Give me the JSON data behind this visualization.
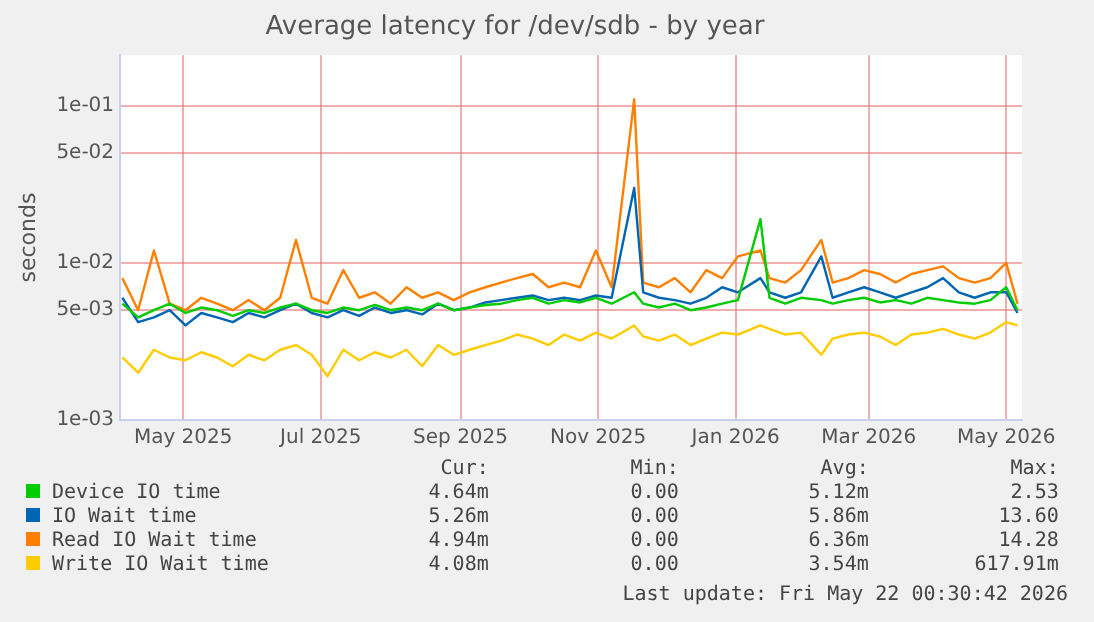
{
  "chart_data": {
    "type": "line",
    "title": "Average latency for /dev/sdb - by year",
    "ylabel": "seconds",
    "x": [
      "2025-04-19",
      "2025-04-26",
      "2025-05-03",
      "2025-05-10",
      "2025-05-17",
      "2025-05-24",
      "2025-05-31",
      "2025-06-07",
      "2025-06-14",
      "2025-06-21",
      "2025-06-28",
      "2025-07-05",
      "2025-07-12",
      "2025-07-19",
      "2025-07-26",
      "2025-08-02",
      "2025-08-09",
      "2025-08-16",
      "2025-08-23",
      "2025-08-30",
      "2025-09-06",
      "2025-09-13",
      "2025-09-20",
      "2025-09-27",
      "2025-10-04",
      "2025-10-11",
      "2025-10-18",
      "2025-10-25",
      "2025-11-01",
      "2025-11-08",
      "2025-11-15",
      "2025-11-22",
      "2025-12-02",
      "2025-12-06",
      "2025-12-13",
      "2025-12-20",
      "2025-12-27",
      "2026-01-03",
      "2026-01-10",
      "2026-01-17",
      "2026-01-27",
      "2026-01-31",
      "2026-02-07",
      "2026-02-14",
      "2026-02-23",
      "2026-02-28",
      "2026-03-07",
      "2026-03-14",
      "2026-03-21",
      "2026-03-28",
      "2026-04-04",
      "2026-04-11",
      "2026-04-18",
      "2026-04-25",
      "2026-05-02",
      "2026-05-09",
      "2026-05-16",
      "2026-05-21"
    ],
    "series": [
      {
        "name": "Device IO time",
        "color": "#00cc00",
        "values": [
          0.0055,
          0.0045,
          0.005,
          0.0055,
          0.0048,
          0.0052,
          0.005,
          0.0046,
          0.005,
          0.0048,
          0.0052,
          0.0055,
          0.005,
          0.0048,
          0.0052,
          0.005,
          0.0054,
          0.005,
          0.0052,
          0.005,
          0.0055,
          0.005,
          0.0052,
          0.0054,
          0.0055,
          0.0058,
          0.006,
          0.0055,
          0.0058,
          0.0056,
          0.006,
          0.0055,
          0.0065,
          0.0055,
          0.0052,
          0.0055,
          0.005,
          0.0052,
          0.0055,
          0.0058,
          0.019,
          0.006,
          0.0055,
          0.006,
          0.0058,
          0.0055,
          0.0058,
          0.006,
          0.0056,
          0.0058,
          0.0055,
          0.006,
          0.0058,
          0.0056,
          0.0055,
          0.0058,
          0.007,
          0.005
        ]
      },
      {
        "name": "IO Wait time",
        "color": "#0066b3",
        "values": [
          0.006,
          0.0042,
          0.0045,
          0.005,
          0.004,
          0.0048,
          0.0045,
          0.0042,
          0.0048,
          0.0045,
          0.005,
          0.0055,
          0.0048,
          0.0045,
          0.005,
          0.0046,
          0.0052,
          0.0048,
          0.005,
          0.0047,
          0.0055,
          0.005,
          0.0052,
          0.0056,
          0.0058,
          0.006,
          0.0062,
          0.0058,
          0.006,
          0.0058,
          0.0062,
          0.006,
          0.03,
          0.0065,
          0.006,
          0.0058,
          0.0055,
          0.006,
          0.007,
          0.0065,
          0.008,
          0.0065,
          0.006,
          0.0065,
          0.011,
          0.006,
          0.0065,
          0.007,
          0.0065,
          0.006,
          0.0065,
          0.007,
          0.008,
          0.0065,
          0.006,
          0.0065,
          0.0065,
          0.0048
        ]
      },
      {
        "name": "Read IO Wait time",
        "color": "#ff8000",
        "values": [
          0.008,
          0.005,
          0.012,
          0.0055,
          0.005,
          0.006,
          0.0055,
          0.005,
          0.0058,
          0.005,
          0.006,
          0.014,
          0.006,
          0.0055,
          0.009,
          0.006,
          0.0065,
          0.0055,
          0.007,
          0.006,
          0.0065,
          0.0058,
          0.0065,
          0.007,
          0.0075,
          0.008,
          0.0085,
          0.007,
          0.0075,
          0.007,
          0.012,
          0.007,
          0.11,
          0.0075,
          0.007,
          0.008,
          0.0065,
          0.009,
          0.008,
          0.011,
          0.012,
          0.008,
          0.0075,
          0.009,
          0.014,
          0.0075,
          0.008,
          0.009,
          0.0085,
          0.0075,
          0.0085,
          0.009,
          0.0095,
          0.008,
          0.0075,
          0.008,
          0.01,
          0.0055
        ]
      },
      {
        "name": "Write IO Wait time",
        "color": "#ffcc00",
        "values": [
          0.0025,
          0.002,
          0.0028,
          0.0025,
          0.0024,
          0.0027,
          0.0025,
          0.0022,
          0.0026,
          0.0024,
          0.0028,
          0.003,
          0.0026,
          0.0019,
          0.0028,
          0.0024,
          0.0027,
          0.0025,
          0.0028,
          0.0022,
          0.003,
          0.0026,
          0.0028,
          0.003,
          0.0032,
          0.0035,
          0.0033,
          0.003,
          0.0035,
          0.0032,
          0.0036,
          0.0033,
          0.004,
          0.0034,
          0.0032,
          0.0035,
          0.003,
          0.0033,
          0.0036,
          0.0035,
          0.004,
          0.0038,
          0.0035,
          0.0036,
          0.0026,
          0.0033,
          0.0035,
          0.0036,
          0.0034,
          0.003,
          0.0035,
          0.0036,
          0.0038,
          0.0035,
          0.0033,
          0.0036,
          0.0042,
          0.004
        ]
      }
    ],
    "xlim": [
      "2025-04-18",
      "2026-05-23"
    ],
    "xticks": [
      {
        "value": "2025-05-16",
        "label": "May 2025"
      },
      {
        "value": "2025-07-16",
        "label": "Jul 2025"
      },
      {
        "value": "2025-09-16",
        "label": "Sep 2025"
      },
      {
        "value": "2025-11-16",
        "label": "Nov 2025"
      },
      {
        "value": "2026-01-16",
        "label": "Jan 2026"
      },
      {
        "value": "2026-03-16",
        "label": "Mar 2026"
      },
      {
        "value": "2026-05-16",
        "label": "May 2026"
      }
    ],
    "log": "y",
    "ylim": [
      0.001,
      0.21
    ],
    "yticks": [
      {
        "value": 0.001,
        "label": "1e-03"
      },
      {
        "value": 0.005,
        "label": "5e-03"
      },
      {
        "value": 0.01,
        "label": "1e-02"
      },
      {
        "value": 0.05,
        "label": "5e-02"
      },
      {
        "value": 0.1,
        "label": "1e-01"
      }
    ],
    "grid": true,
    "legend": "bottom",
    "annotations": [
      "Cur:",
      "Min:",
      "Avg:",
      "Max:",
      "4.64m",
      "0.00",
      "5.12m",
      "2.53",
      "5.26m",
      "0.00",
      "5.86m",
      "13.60",
      "4.94m",
      "0.00",
      "6.36m",
      "14.28",
      "4.08m",
      "0.00",
      "3.54m",
      "617.91m",
      "Last update: Fri May 22 00:30:42 2026"
    ]
  }
}
